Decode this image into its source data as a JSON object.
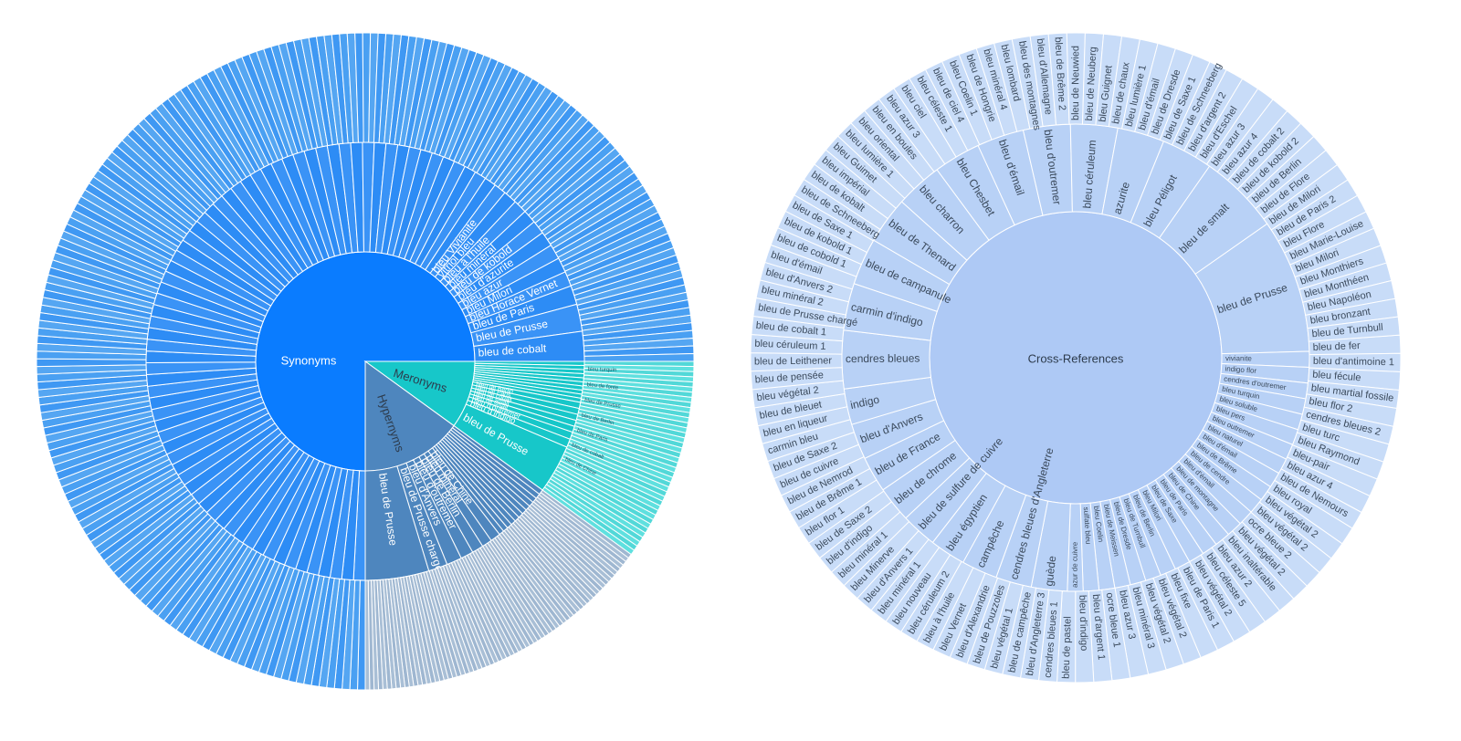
{
  "chart_data": [
    {
      "type": "sunburst",
      "colors": {
        "Synonyms": "#0a7cff",
        "Synonyms_leaf": "#4aa0f2",
        "Meronyms": "#17c7c9",
        "Meronyms_leaf": "#5fe0df",
        "Hypernyms": "#4e86be",
        "Hypernyms_leaf": "#a9bfd6"
      },
      "groups": [
        {
          "name": "Synonyms",
          "share": 0.75,
          "children": [
            "bleu de cobalt",
            "bleu de Prusse",
            "bleu de Paris",
            "bleu Horace Vernet",
            "bleu Milori",
            "bleu azur",
            "bleu d'azurite",
            "bleu de kobold",
            "bleu minéral",
            "bleu à l'huile",
            "vitriol bleu",
            "bleu Vivianite"
          ],
          "children_share": [
            0.022,
            0.02,
            0.014,
            0.011,
            0.011,
            0.011,
            0.011,
            0.01,
            0.01,
            0.01,
            0.01,
            0.009
          ],
          "other_children": 70,
          "leaf_count": 200
        },
        {
          "name": "Meronyms",
          "share": 0.1,
          "children": [
            "bleu de Prusse",
            "bleu d'indigo",
            "bleu d'outremer",
            "bleu de smalt",
            "bleu de smalt",
            "bleu de cobalt",
            "bleu de Paris",
            "bleu de Berlin"
          ],
          "children_share": [
            0.04,
            0.007,
            0.006,
            0.005,
            0.005,
            0.005,
            0.005,
            0.005
          ],
          "other_children": 10,
          "leaf_count": 40,
          "leaf_labels": [
            "bleu turquin",
            "bleu de fonte",
            "bleu de Prusse",
            "bleu de Berlin",
            "bleu de Paris",
            "bleu de cobalt",
            "bleu de Chine"
          ]
        },
        {
          "name": "Hypernyms",
          "share": 0.15,
          "children": [
            "bleu de Prusse",
            "bleu de Prusse chargé",
            "bleu d'Anvers",
            "bleu d'outremer",
            "bleu de Berlin",
            "bleu minéral",
            "bleu de Chine"
          ],
          "children_share": [
            0.05,
            0.015,
            0.012,
            0.01,
            0.009,
            0.008,
            0.008
          ],
          "other_children": 12,
          "leaf_count": 70
        }
      ]
    },
    {
      "type": "sunburst",
      "center_label": "Cross-References",
      "colors": {
        "center": "#aec9f5",
        "middle": "#b8d1f6",
        "outer": "#c8dcf8",
        "stroke": "#ffffff"
      },
      "middle": [
        {
          "label": "bleu de Prusse",
          "w": 6
        },
        {
          "label": "vivianite",
          "w": 0.7
        },
        {
          "label": "indigo flor",
          "w": 0.7
        },
        {
          "label": "cendres d'outremer",
          "w": 0.7
        },
        {
          "label": "bleu turquin",
          "w": 0.7
        },
        {
          "label": "bleu soluble",
          "w": 0.7
        },
        {
          "label": "bleu pers",
          "w": 0.7
        },
        {
          "label": "bleu outremer",
          "w": 0.7
        },
        {
          "label": "bleu naturel",
          "w": 0.7
        },
        {
          "label": "bleu d'émail",
          "w": 0.7
        },
        {
          "label": "bleu de Brême",
          "w": 0.7
        },
        {
          "label": "bleu de cendre",
          "w": 0.7
        },
        {
          "label": "bleu d'émail",
          "w": 0.7
        },
        {
          "label": "bleu de montagne",
          "w": 0.7
        },
        {
          "label": "bleu de Chine",
          "w": 0.7
        },
        {
          "label": "bleu de Paris",
          "w": 0.7
        },
        {
          "label": "bleu de Saxe",
          "w": 0.7
        },
        {
          "label": "bleu Milori",
          "w": 0.7
        },
        {
          "label": "bleu de Berlin",
          "w": 0.7
        },
        {
          "label": "bleu de Turnbull",
          "w": 0.7
        },
        {
          "label": "bleu de Dresde",
          "w": 0.7
        },
        {
          "label": "bleu de Meissen",
          "w": 0.7
        },
        {
          "label": "bleu Coelin",
          "w": 0.7
        },
        {
          "label": "sulfate bleu",
          "w": 0.7
        },
        {
          "label": "azur de cuivre",
          "w": 0.7
        },
        {
          "label": "guède",
          "w": 1.6
        },
        {
          "label": "cendres bleues d'Angleterre",
          "w": 1.6
        },
        {
          "label": "campêche",
          "w": 1.6
        },
        {
          "label": "bleu égyptien",
          "w": 1.6
        },
        {
          "label": "bleu de sulfure de cuivre",
          "w": 1.6
        },
        {
          "label": "bleu de chrome",
          "w": 1.6
        },
        {
          "label": "bleu de France",
          "w": 1.6
        },
        {
          "label": "bleu d'Anvers",
          "w": 1.6
        },
        {
          "label": "indigo",
          "w": 1.6
        },
        {
          "label": "cendres bleues",
          "w": 2.6
        },
        {
          "label": "carmin d'indigo",
          "w": 2.1
        },
        {
          "label": "bleu de campanule",
          "w": 2.1
        },
        {
          "label": "bleu de Thenard",
          "w": 2.1
        },
        {
          "label": "bleu charron",
          "w": 2.1
        },
        {
          "label": "bleu Chesbet",
          "w": 2.1
        },
        {
          "label": "bleu d'émail",
          "w": 2.1
        },
        {
          "label": "bleu d'outremer",
          "w": 2.1
        },
        {
          "label": "bleu céruleum",
          "w": 2.1
        },
        {
          "label": "azurite",
          "w": 2.1
        },
        {
          "label": "bleu Péligot",
          "w": 2.3
        },
        {
          "label": "bleu de smalt",
          "w": 3.6
        }
      ],
      "outer": [
        "bleu de fer",
        "bleu d'antimoine 1",
        "bleu fécule",
        "bleu martial fossile",
        "bleu flor 2",
        "cendres bleues 2",
        "bleu turc",
        "bleu Raymond",
        "bleu-pair",
        "bleu azur 4",
        "bleu de Nemours",
        "bleu royal",
        "bleu végétal 2",
        "bleu végétal 2",
        "ocre bleue 2",
        "bleu végétal 2",
        "bleu inaltérable",
        "bleu azur 2",
        "bleu céleste 5",
        "bleu végétal 2",
        "bleu de Paris 1",
        "bleu fixe",
        "bleu végétal 2",
        "bleu végétal 2",
        "bleu minéral 3",
        "bleu azur 3",
        "ocre bleue 1",
        "bleu d'argent 1",
        "bleu d'indigo",
        "bleu de pastel",
        "cendres bleues 1",
        "bleu d'Angleterre 3",
        "bleu de campêche",
        "bleu végétal 1",
        "bleu de Pouzzoles",
        "bleu d'Alexandrie",
        "bleu Vernet",
        "bleu à l'huile",
        "bleu céruleum 2",
        "bleu nouveau",
        "bleu minéral 1",
        "bleu d'Anvers 1",
        "bleu Minerve",
        "bleu minéral 1",
        "bleu d'indigo",
        "bleu de Saxe 2",
        "bleu flor 1",
        "bleu de Brême 1",
        "bleu de Nemrod",
        "bleu de cuivre",
        "bleu de Saxe 2",
        "carmin bleu",
        "bleu en liqueur",
        "bleu de bleuet",
        "bleu végétal 2",
        "bleu de pensée",
        "bleu de Leithener",
        "bleu céruleum 1",
        "bleu de cobalt 1",
        "bleu de Prusse chargé",
        "bleu minéral 2",
        "bleu d'Anvers 2",
        "bleu d'émail",
        "bleu de cobold 1",
        "bleu de kobold 1",
        "bleu de Saxe 1",
        "bleu de Schneeberg",
        "bleu de kobalt",
        "bleu impérial",
        "bleu Guimet",
        "bleu lumière 1",
        "bleu oriental",
        "bleu en boules",
        "bleu azur 3",
        "bleu ciel",
        "bleu céleste 1",
        "bleu de ciel 4",
        "bleu Coelin 1",
        "bleu de Hongrie",
        "bleu minéral 4",
        "bleu lombard",
        "bleu des montagnes",
        "bleu d'Allemagne",
        "bleu de Brême 2",
        "bleu de Neuwied",
        "bleu de Neuberg",
        "bleu Guignet",
        "bleu de chaux",
        "bleu lumière 1",
        "bleu d'émail",
        "bleu de Dresde",
        "bleu de Saxe 1",
        "bleu de Schneeberg",
        "bleu d'argent 2",
        "bleu d'Eschel",
        "bleu azur 3",
        "bleu azur 4",
        "bleu de cobalt 2",
        "bleu de kobold 2",
        "bleu de Berlin",
        "bleu de Flore",
        "bleu de Milori",
        "bleu de Paris 2",
        "bleu Flore",
        "bleu Marie-Louise",
        "bleu Milori",
        "bleu Monthiers",
        "bleu Monthéen",
        "bleu Napoléon",
        "bleu bronzant",
        "bleu de Turnbull"
      ]
    }
  ]
}
